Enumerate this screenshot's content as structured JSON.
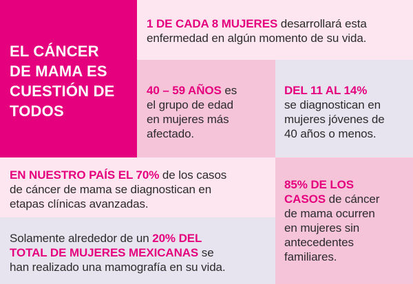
{
  "colors": {
    "magenta": "#e5007e",
    "highlight": "#e5007e",
    "pink_light": "#fde6ef",
    "pink_mid": "#f6c4d9",
    "lavender": "#e8e4ef"
  },
  "title": {
    "lines": [
      "EL CÁNCER",
      "DE MAMA ES",
      "CUESTIÓN DE",
      "TODOS"
    ]
  },
  "stat1": {
    "highlight": "1 DE CADA 8 MUJERES",
    "rest_line1": " desarrollará esta",
    "line2": "enfermedad en algún momento de su vida."
  },
  "stat2": {
    "highlight": "40 – 59 AÑOS",
    "rest_line1": " es",
    "line2": "el grupo de edad",
    "line3": "en mujeres más",
    "line4": "afectado."
  },
  "stat3": {
    "highlight": "DEL 11 AL 14%",
    "line2": "se diagnostican en",
    "line3": "mujeres jóvenes de",
    "line4": "40 años o menos."
  },
  "stat4": {
    "highlight": "EN NUESTRO PAÍS EL 70%",
    "rest_line1": " de los casos",
    "line2": "de cáncer de mama se diagnostican en",
    "line3": "etapas clínicas avanzadas."
  },
  "stat5": {
    "highlight_line1": "85% DE LOS",
    "highlight_line2": "CASOS",
    "rest_line2": " de cáncer",
    "line3": "de mama ocurren",
    "line4": "en mujeres sin",
    "line5": "antecedentes",
    "line6": "familiares."
  },
  "stat6": {
    "line1_pre": "Solamente alrededor de un ",
    "line1_hl": "20% DEL",
    "line2_hl": "TOTAL DE MUJERES MEXICANAS",
    "line2_post": " se",
    "line3": "han realizado una mamografía en su vida."
  }
}
